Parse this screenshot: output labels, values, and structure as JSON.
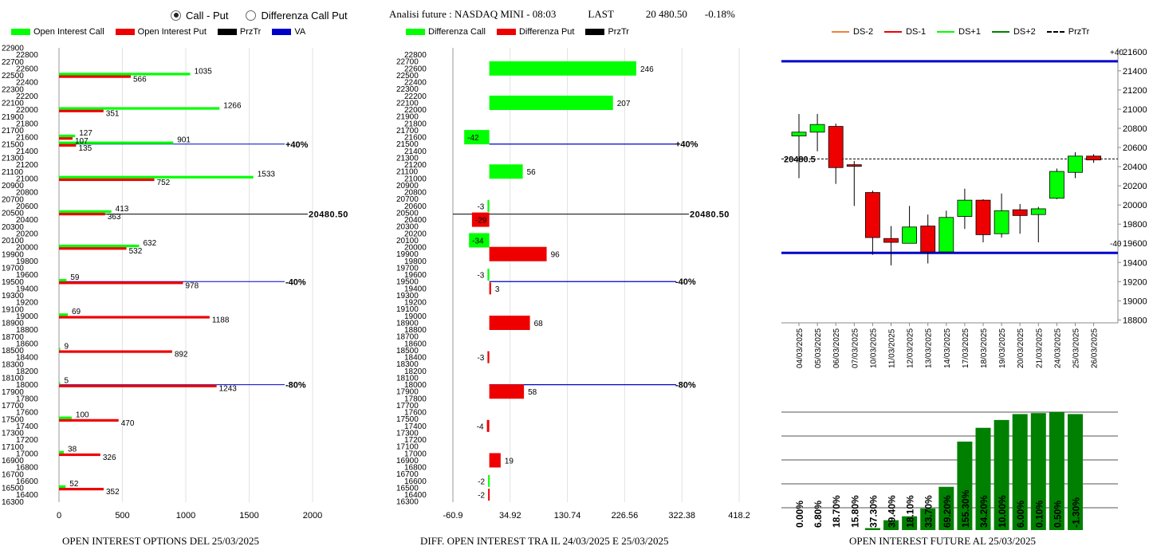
{
  "header": {
    "radio_call_put": "Call - Put",
    "radio_diff": "Differenza Call Put",
    "title": "Analisi future : NASDAQ MINI - 08:03",
    "last_label": "LAST",
    "last_value": "20 480.50",
    "change": "-0.18%"
  },
  "colors": {
    "green": "#00ff00",
    "red": "#ee0000",
    "dark_green": "#008000",
    "blue": "#0000cc",
    "orange": "#f08040"
  },
  "left_legend": [
    "Open Interest Call",
    "Open Interest Put",
    "PrzTr",
    "VA"
  ],
  "mid_legend": [
    "Differenza Call",
    "Differenza Put",
    "PrzTr"
  ],
  "right_legend": [
    "DS-2",
    "DS-1",
    "DS+1",
    "DS+2",
    "PrzTr"
  ],
  "footers": {
    "left": "OPEN INTEREST OPTIONS DEL 25/03/2025",
    "mid": "DIFF. OPEN INTEREST TRA IL 24/03/2025 E 25/03/2025",
    "right": "OPEN INTEREST FUTURE AL 25/03/2025"
  },
  "chart_data": [
    {
      "type": "bar",
      "orientation": "horizontal",
      "strikes": [
        22900,
        22800,
        22700,
        22600,
        22500,
        22400,
        22300,
        22200,
        22100,
        22000,
        21900,
        21800,
        21700,
        21600,
        21500,
        21400,
        21300,
        21200,
        21100,
        21000,
        20900,
        20800,
        20700,
        20600,
        20500,
        20400,
        20300,
        20200,
        20100,
        20000,
        19900,
        19800,
        19700,
        19600,
        19500,
        19400,
        19300,
        19200,
        19100,
        19000,
        18900,
        18800,
        18700,
        18600,
        18500,
        18400,
        18300,
        18200,
        18100,
        18000,
        17900,
        17800,
        17700,
        17600,
        17500,
        17400,
        17300,
        17200,
        17100,
        17000,
        16900,
        16800,
        16700,
        16600,
        16500,
        16400,
        16300
      ],
      "xticks": [
        0,
        500,
        1000,
        1500,
        2000
      ],
      "xlim": [
        0,
        2000
      ],
      "call": [
        {
          "strike": 22500,
          "value": 1035
        },
        {
          "strike": 22000,
          "value": 1266
        },
        {
          "strike": 21600,
          "value": 127
        },
        {
          "strike": 21500,
          "value": 901
        },
        {
          "strike": 21000,
          "value": 1533
        },
        {
          "strike": 20500,
          "value": 413
        },
        {
          "strike": 20000,
          "value": 632
        },
        {
          "strike": 19500,
          "value": 59
        },
        {
          "strike": 19000,
          "value": 69
        },
        {
          "strike": 18500,
          "value": 9
        },
        {
          "strike": 18000,
          "value": 5
        },
        {
          "strike": 17500,
          "value": 100
        },
        {
          "strike": 17000,
          "value": 38
        },
        {
          "strike": 16500,
          "value": 52
        }
      ],
      "put": [
        {
          "strike": 22500,
          "value": 566
        },
        {
          "strike": 22000,
          "value": 351
        },
        {
          "strike": 21600,
          "value": 107
        },
        {
          "strike": 21500,
          "value": 135
        },
        {
          "strike": 21000,
          "value": 752
        },
        {
          "strike": 20500,
          "value": 363
        },
        {
          "strike": 20000,
          "value": 532
        },
        {
          "strike": 19500,
          "value": 978
        },
        {
          "strike": 19000,
          "value": 1188
        },
        {
          "strike": 18500,
          "value": 892
        },
        {
          "strike": 18000,
          "value": 1243
        },
        {
          "strike": 17500,
          "value": 470
        },
        {
          "strike": 17000,
          "value": 326
        },
        {
          "strike": 16500,
          "value": 352
        }
      ],
      "levels": [
        {
          "strike": 21500,
          "label": "+40%"
        },
        {
          "strike": 19500,
          "label": "-40%"
        },
        {
          "strike": 18000,
          "label": "-80%"
        }
      ],
      "price_line": {
        "strike": 20480.5,
        "label": "20480.50"
      }
    },
    {
      "type": "bar",
      "orientation": "horizontal",
      "strikes": [
        22800,
        22700,
        22600,
        22500,
        22400,
        22300,
        22200,
        22100,
        22000,
        21900,
        21800,
        21700,
        21600,
        21500,
        21400,
        21300,
        21200,
        21100,
        21000,
        20900,
        20800,
        20700,
        20600,
        20500,
        20400,
        20300,
        20200,
        20100,
        20000,
        19900,
        19800,
        19700,
        19600,
        19500,
        19400,
        19300,
        19200,
        19100,
        19000,
        18900,
        18800,
        18700,
        18600,
        18500,
        18400,
        18300,
        18200,
        18100,
        18000,
        17900,
        17800,
        17700,
        17600,
        17500,
        17400,
        17300,
        17200,
        17100,
        17000,
        16900,
        16800,
        16700,
        16600,
        16500,
        16400,
        16300
      ],
      "xticks": [
        "-60.9",
        "34.92",
        "130.74",
        "226.56",
        "322.38",
        "418.2"
      ],
      "xlim": [
        -60.9,
        418.2
      ],
      "diff_call": [
        {
          "strike": 22600,
          "value": 246
        },
        {
          "strike": 22100,
          "value": 207
        },
        {
          "strike": 21600,
          "value": -42
        },
        {
          "strike": 21100,
          "value": 56
        },
        {
          "strike": 20600,
          "value": -3
        },
        {
          "strike": 20100,
          "value": -34
        },
        {
          "strike": 19600,
          "value": -3
        },
        {
          "strike": 16600,
          "value": -2
        }
      ],
      "diff_put": [
        {
          "strike": 20400,
          "value": -29
        },
        {
          "strike": 19900,
          "value": 96
        },
        {
          "strike": 19400,
          "value": 3
        },
        {
          "strike": 18900,
          "value": 68
        },
        {
          "strike": 18400,
          "value": -3
        },
        {
          "strike": 17900,
          "value": 58
        },
        {
          "strike": 17400,
          "value": -4
        },
        {
          "strike": 16900,
          "value": 19
        },
        {
          "strike": 16400,
          "value": -2
        }
      ],
      "levels": [
        {
          "strike": 21500,
          "label": "+40%"
        },
        {
          "strike": 19500,
          "label": "-40%"
        },
        {
          "strike": 18000,
          "label": "-80%"
        }
      ],
      "price_line": {
        "strike": 20480.5,
        "label": "20480.50"
      }
    },
    {
      "type": "candlestick",
      "dates": [
        "04/03/2025",
        "05/03/2025",
        "06/03/2025",
        "07/03/2025",
        "10/03/2025",
        "11/03/2025",
        "12/03/2025",
        "13/03/2025",
        "14/03/2025",
        "17/03/2025",
        "18/03/2025",
        "19/03/2025",
        "20/03/2025",
        "21/03/2025",
        "24/03/2025",
        "25/03/2025",
        "26/03/2025"
      ],
      "candles": [
        {
          "o": 20720,
          "c": 20760,
          "h": 20950,
          "l": 20280
        },
        {
          "o": 20760,
          "c": 20840,
          "h": 20950,
          "l": 20560
        },
        {
          "o": 20820,
          "c": 20390,
          "h": 20850,
          "l": 20220
        },
        {
          "o": 20420,
          "c": 20410,
          "h": 20460,
          "l": 19990
        },
        {
          "o": 20130,
          "c": 19660,
          "h": 20150,
          "l": 19480
        },
        {
          "o": 19650,
          "c": 19610,
          "h": 19780,
          "l": 19370
        },
        {
          "o": 19600,
          "c": 19770,
          "h": 19990,
          "l": 19600
        },
        {
          "o": 19780,
          "c": 19510,
          "h": 19900,
          "l": 19390
        },
        {
          "o": 19510,
          "c": 19870,
          "h": 19940,
          "l": 19500
        },
        {
          "o": 19880,
          "c": 20050,
          "h": 20170,
          "l": 19750
        },
        {
          "o": 20050,
          "c": 19690,
          "h": 20060,
          "l": 19610
        },
        {
          "o": 19700,
          "c": 19940,
          "h": 20120,
          "l": 19660
        },
        {
          "o": 19950,
          "c": 19890,
          "h": 20010,
          "l": 19700
        },
        {
          "o": 19900,
          "c": 19960,
          "h": 19980,
          "l": 19610
        },
        {
          "o": 20070,
          "c": 20350,
          "h": 20380,
          "l": 20060
        },
        {
          "o": 20340,
          "c": 20510,
          "h": 20550,
          "l": 20280
        },
        {
          "o": 20510,
          "c": 20470,
          "h": 20530,
          "l": 20440
        }
      ],
      "yticks": [
        18800,
        19000,
        19200,
        19400,
        19600,
        19800,
        20000,
        20200,
        20400,
        20600,
        20800,
        21000,
        21200,
        21400,
        21600
      ],
      "ylim": [
        18770,
        21640
      ],
      "level_lines": [
        {
          "value": 21500,
          "label": "+40"
        },
        {
          "value": 19500,
          "label": "-40"
        }
      ],
      "przTr": {
        "value": 20480.5,
        "label": "20480.5"
      }
    },
    {
      "type": "bar",
      "categories": [
        "04/03/2025",
        "05/03/2025",
        "06/03/2025",
        "07/03/2025",
        "10/03/2025",
        "11/03/2025",
        "12/03/2025",
        "13/03/2025",
        "14/03/2025",
        "17/03/2025",
        "18/03/2025",
        "19/03/2025",
        "20/03/2025",
        "21/03/2025",
        "24/03/2025",
        "25/03/2025",
        "26/03/2025"
      ],
      "values": [
        0,
        0,
        0,
        0,
        1,
        5,
        7,
        11,
        22,
        45,
        52,
        56,
        59,
        59.5,
        60,
        59,
        0
      ],
      "labels": [
        "0.00%",
        "6.80%",
        "18.70%",
        "15.80%",
        "37.30%",
        "39.40%",
        "18.10%",
        "33.70%",
        "69.20%",
        "155.30%",
        "34.20%",
        "10.00%",
        "6.00%",
        "0.10%",
        "0.50%",
        "-1.30%",
        ""
      ]
    }
  ]
}
